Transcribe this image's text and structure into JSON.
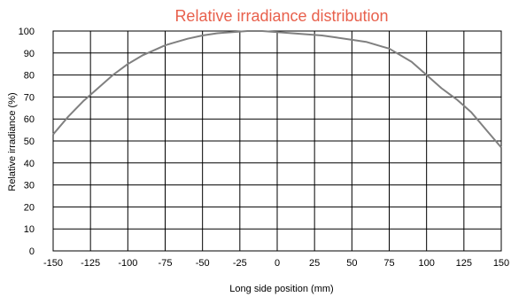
{
  "chart_data": {
    "type": "line",
    "title": "Relative irradiance distribution",
    "xlabel": "Long side position (mm)",
    "ylabel": "Relative irradiance (%)",
    "xlim": [
      -150,
      150
    ],
    "ylim": [
      0,
      100
    ],
    "xticks": [
      -150,
      -125,
      -100,
      -75,
      -50,
      -25,
      0,
      25,
      50,
      75,
      100,
      125,
      150
    ],
    "yticks": [
      0,
      10,
      20,
      30,
      40,
      50,
      60,
      70,
      80,
      90,
      100
    ],
    "grid": true,
    "colors": {
      "title": "#e8604c",
      "line": "#808080",
      "grid": "#000000"
    },
    "series": [
      {
        "x": [
          -150,
          -140,
          -130,
          -125,
          -120,
          -110,
          -100,
          -90,
          -80,
          -75,
          -70,
          -60,
          -50,
          -40,
          -30,
          -20,
          -10,
          0,
          10,
          20,
          30,
          40,
          50,
          60,
          70,
          75,
          80,
          90,
          100,
          110,
          120,
          125,
          130,
          140,
          150
        ],
        "values": [
          53,
          61,
          68,
          71,
          74,
          80,
          85,
          89,
          92,
          93.5,
          94.5,
          96.5,
          98,
          99,
          99.5,
          100,
          100,
          99.5,
          99,
          98.5,
          98,
          97,
          96,
          95,
          93,
          92,
          90,
          86,
          80,
          74,
          69,
          66,
          63,
          55,
          47
        ]
      }
    ]
  }
}
